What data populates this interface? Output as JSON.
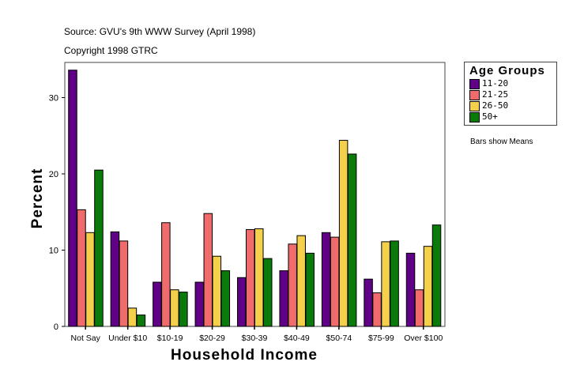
{
  "header": {
    "source": "Source: GVU's 9th WWW Survey (April 1998)",
    "copyright": "Copyright 1998 GTRC"
  },
  "note": "Bars show Means",
  "chart_data": {
    "type": "bar",
    "title": "",
    "xlabel": "Household Income",
    "ylabel": "Percent",
    "ylim": [
      0,
      34.5
    ],
    "yticks": [
      0,
      10,
      20,
      30
    ],
    "grid": false,
    "legend_title": "Age Groups",
    "legend_position": "right",
    "categories": [
      "Not Say",
      "Under $10",
      "$10-19",
      "$20-29",
      "$30-39",
      "$40-49",
      "$50-74",
      "$75-99",
      "Over $100"
    ],
    "series": [
      {
        "name": "11-20",
        "color": "#5f0087",
        "values": [
          33.6,
          12.4,
          5.8,
          5.8,
          6.4,
          7.3,
          12.3,
          6.2,
          9.6
        ]
      },
      {
        "name": "21-25",
        "color": "#f06c6c",
        "values": [
          15.3,
          11.2,
          13.6,
          14.8,
          12.7,
          10.8,
          11.7,
          4.4,
          4.8
        ]
      },
      {
        "name": "26-50",
        "color": "#f5d04a",
        "values": [
          12.3,
          2.4,
          4.8,
          9.2,
          12.8,
          11.9,
          24.4,
          11.1,
          10.5
        ]
      },
      {
        "name": "50+",
        "color": "#0a7a0a",
        "values": [
          20.5,
          1.5,
          4.5,
          7.3,
          8.9,
          9.6,
          22.6,
          11.2,
          13.3
        ]
      }
    ]
  }
}
